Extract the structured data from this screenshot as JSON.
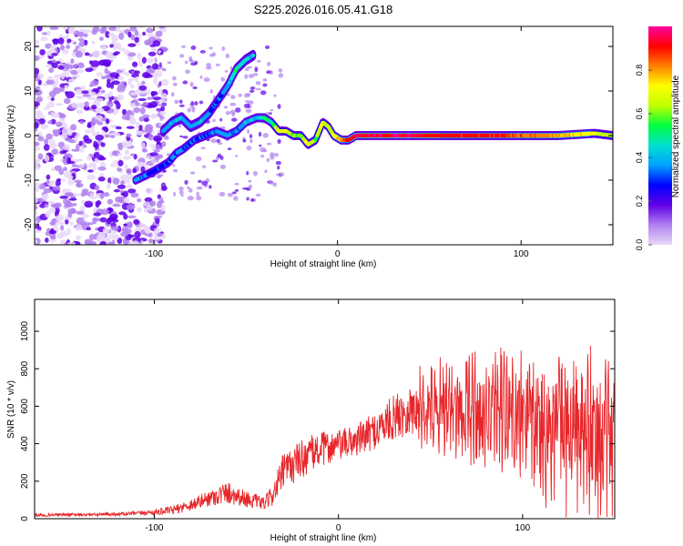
{
  "title": "S225.2026.016.05.41.G18",
  "chart_data": [
    {
      "type": "heatmap",
      "xlabel": "Height of straight line (km)",
      "ylabel": "Frequency (Hz)",
      "xlim": [
        -165,
        150
      ],
      "ylim": [
        -24.5,
        24.5
      ],
      "x_ticks": [
        -100,
        0,
        100
      ],
      "y_ticks": [
        -20,
        -10,
        0,
        10,
        20
      ],
      "colorbar": {
        "label": "Normalized spectral amplitude",
        "range": [
          0,
          1
        ],
        "ticks": [
          0.0,
          0.2,
          0.4,
          0.6,
          0.8
        ],
        "tick_labels": [
          "0.0",
          "0.2",
          "0.4",
          "0.6",
          "0.8"
        ],
        "colors": [
          "#e8d8f8",
          "#b080f0",
          "#6000e8",
          "#0000ff",
          "#00a0ff",
          "#00e0d0",
          "#00ff40",
          "#c0ff00",
          "#ffff00",
          "#ff8000",
          "#ff0000",
          "#ff00a0"
        ]
      },
      "ridge": {
        "x": [
          -110,
          -100,
          -92,
          -88,
          -84,
          -78,
          -72,
          -66,
          -60,
          -55,
          -50,
          -44,
          -40,
          -36,
          -32,
          -28,
          -24,
          -20,
          -16,
          -12,
          -8,
          -5,
          -2,
          2,
          6,
          10,
          20,
          40,
          60,
          80,
          100,
          120,
          140,
          150
        ],
        "frequency": [
          -10,
          -8,
          -6,
          -4,
          -3,
          -1,
          0,
          1,
          0,
          1,
          3,
          4,
          4,
          3,
          1,
          1,
          0,
          0,
          -2,
          -1,
          3,
          2,
          0,
          -1,
          -1,
          0,
          0,
          0,
          0,
          0,
          0,
          0,
          0.5,
          0
        ],
        "amplitude": [
          0.35,
          0.3,
          0.3,
          0.35,
          0.35,
          0.3,
          0.3,
          0.35,
          0.35,
          0.3,
          0.4,
          0.4,
          0.5,
          0.5,
          0.7,
          0.7,
          0.6,
          0.6,
          0.7,
          0.6,
          0.7,
          0.6,
          0.7,
          0.8,
          0.9,
          0.95,
          0.95,
          0.95,
          0.9,
          0.9,
          0.85,
          0.8,
          0.7,
          0.6
        ]
      },
      "upper_branch": {
        "x": [
          -95,
          -90,
          -85,
          -80,
          -75,
          -70,
          -65,
          -60,
          -55,
          -50,
          -46
        ],
        "frequency": [
          1,
          3,
          4,
          2,
          3,
          5,
          8,
          11,
          15,
          17,
          18
        ],
        "amplitude": [
          0.35,
          0.4,
          0.4,
          0.35,
          0.4,
          0.35,
          0.3,
          0.35,
          0.5,
          0.45,
          0.4
        ]
      },
      "noise_region_x": [
        -165,
        -100
      ]
    },
    {
      "type": "line",
      "xlabel": "Height of straight line (km)",
      "ylabel": "SNR (10 * v/v)",
      "xlim": [
        -165,
        150
      ],
      "ylim": [
        0,
        1170
      ],
      "x_ticks": [
        -100,
        0,
        100
      ],
      "y_ticks": [
        0,
        200,
        400,
        600,
        800,
        1000
      ],
      "series": [
        {
          "name": "SNR",
          "color": "#e8262a",
          "x": [
            -165,
            -130,
            -110,
            -100,
            -90,
            -80,
            -70,
            -60,
            -50,
            -40,
            -35,
            -30,
            -20,
            -10,
            0,
            10,
            20,
            30,
            40,
            50,
            60,
            70,
            80,
            90,
            100,
            110,
            120,
            130,
            140,
            150
          ],
          "baseline": [
            20,
            22,
            28,
            35,
            45,
            75,
            110,
            140,
            105,
            80,
            140,
            250,
            320,
            370,
            390,
            420,
            470,
            540,
            590,
            600,
            610,
            590,
            570,
            550,
            520,
            500,
            480,
            460,
            430,
            420
          ],
          "spread": [
            15,
            15,
            20,
            30,
            40,
            60,
            80,
            110,
            80,
            60,
            120,
            180,
            190,
            170,
            150,
            160,
            180,
            220,
            260,
            320,
            380,
            420,
            460,
            500,
            540,
            560,
            580,
            600,
            620,
            620
          ]
        }
      ]
    }
  ]
}
